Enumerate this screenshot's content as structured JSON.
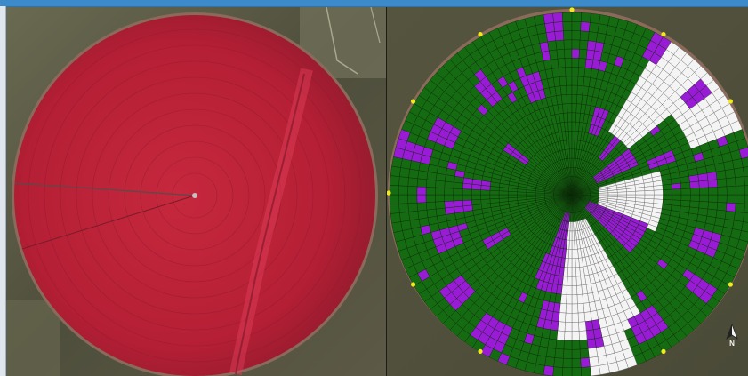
{
  "compass": {
    "label": "N"
  },
  "colors": {
    "crop": "#c0273a",
    "zone_default": "#156b12",
    "zone_highlight": "#9a1bd6",
    "zone_excluded": "#f4f4f4",
    "marker": "#f2ea1c",
    "grid_line": "#0a2a08"
  },
  "icons": {
    "north_arrow": "north-arrow-icon"
  }
}
